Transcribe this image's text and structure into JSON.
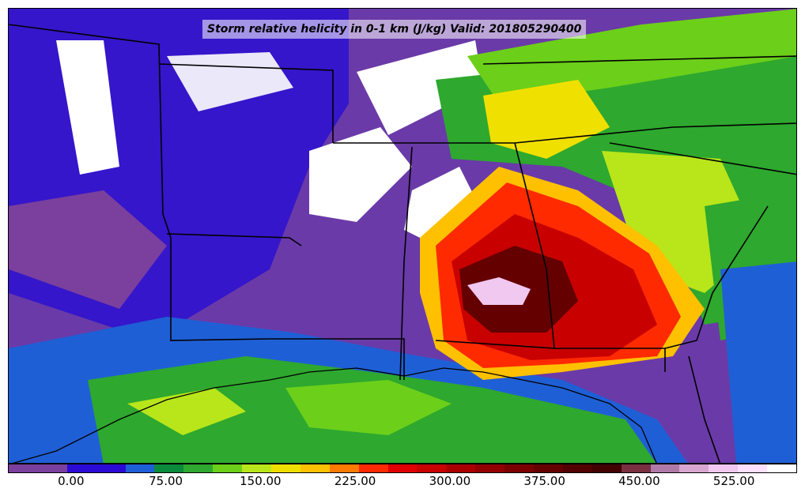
{
  "title": "Storm relative helicity in 0-1 km (J/kg) Valid: 201805290400",
  "map": {
    "variable": "Storm relative helicity in 0-1 km",
    "units": "J/kg",
    "valid_time": "201805290400"
  },
  "colorbar": {
    "min": -50,
    "max": 575,
    "colors": [
      "#7b3f9e",
      "#7b3f9e",
      "#2b0ad6",
      "#2b0ad6",
      "#1f5fd6",
      "#0a8a3a",
      "#2ea82e",
      "#6ccf1a",
      "#b8e61a",
      "#f0e000",
      "#ffc000",
      "#ff7a00",
      "#ff2a00",
      "#e00000",
      "#c80000",
      "#aa0000",
      "#920000",
      "#7a0000",
      "#640000",
      "#520000",
      "#420000",
      "#7a3040",
      "#b07aa8",
      "#d8a6d0",
      "#f0c8f0",
      "#ffe0ff",
      "#ffffff"
    ],
    "tick_labels": [
      "0.00",
      "75.00",
      "150.00",
      "225.00",
      "300.00",
      "375.00",
      "450.00",
      "525.00"
    ],
    "tick_values": [
      0,
      75,
      150,
      225,
      300,
      375,
      450,
      525
    ]
  }
}
